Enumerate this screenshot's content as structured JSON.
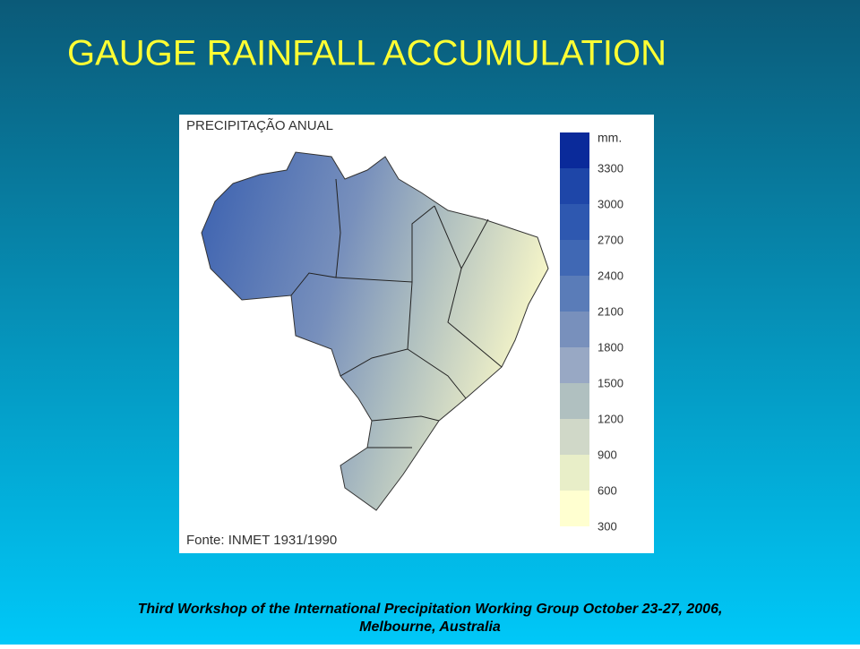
{
  "title": "GAUGE RAINFALL ACCUMULATION",
  "map": {
    "title": "PRECIPITAÇÃO ANUAL",
    "source": "Fonte: INMET 1931/1990",
    "legend": {
      "unit": "mm.",
      "ticks": [
        3300,
        3000,
        2700,
        2400,
        2100,
        1800,
        1500,
        1200,
        900,
        600,
        300
      ],
      "colors": [
        "#0a2a9a",
        "#1e46a8",
        "#2e58b0",
        "#4068b4",
        "#5a7cb8",
        "#7890bc",
        "#98a8c4",
        "#b0c0c0",
        "#d0d8c8",
        "#e8eec8",
        "#ffffd0"
      ]
    }
  },
  "footer": {
    "line1": "Third Workshop of the International Precipitation Working Group October 23-27, 2006,",
    "line2": "Melbourne, Australia"
  }
}
